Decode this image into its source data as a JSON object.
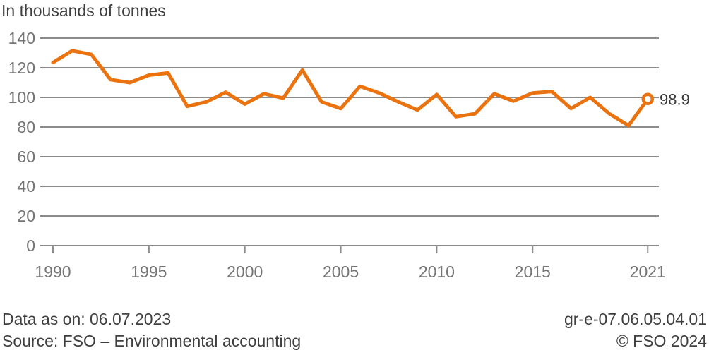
{
  "header": {
    "title": "In thousands of tonnes"
  },
  "chart_data": {
    "type": "line",
    "title": "In thousands of tonnes",
    "x": [
      1990,
      1991,
      1992,
      1993,
      1994,
      1995,
      1996,
      1997,
      1998,
      1999,
      2000,
      2001,
      2002,
      2003,
      2004,
      2005,
      2006,
      2007,
      2008,
      2009,
      2010,
      2011,
      2012,
      2013,
      2014,
      2015,
      2016,
      2017,
      2018,
      2019,
      2020,
      2021
    ],
    "values": [
      123.5,
      131.5,
      129,
      112,
      110,
      115,
      116.5,
      94,
      97,
      103.5,
      95.5,
      102.5,
      99.5,
      118.5,
      97,
      92.5,
      107.5,
      103,
      97,
      91.5,
      102,
      87,
      89,
      102.5,
      97.5,
      103,
      104,
      92.5,
      100,
      89,
      81,
      98.9
    ],
    "end_label": "98.9",
    "x_ticks": [
      1990,
      1995,
      2000,
      2005,
      2010,
      2015,
      2021
    ],
    "y_ticks": [
      0,
      20,
      40,
      60,
      80,
      100,
      120,
      140
    ],
    "ylim": [
      0,
      140
    ],
    "grid": "horizontal",
    "legend": "none",
    "colors": {
      "line": "#eb730f",
      "grid": "#8c8c8c",
      "tick_label": "#757575",
      "text": "#3f3f3f",
      "marker_fill": "#ffffff"
    }
  },
  "footer": {
    "data_as_on": "Data as on: 06.07.2023",
    "source": "Source: FSO – Environmental accounting",
    "chart_id": "gr-e-07.06.05.04.01",
    "copyright": "© FSO 2024"
  }
}
